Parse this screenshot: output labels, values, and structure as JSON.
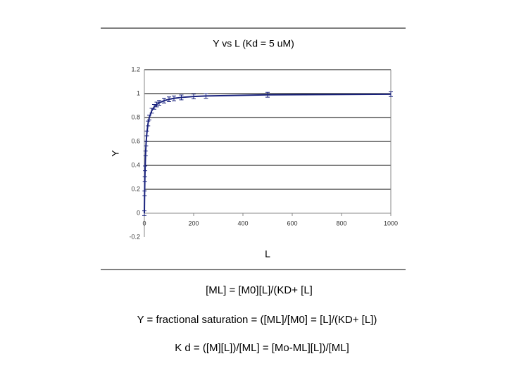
{
  "chart_data": {
    "type": "scatter",
    "title": "Y vs L (Kd = 5 uM)",
    "x_label": "L",
    "y_label": "Y",
    "series": [
      {
        "color": "#1a237e",
        "x": [
          0,
          1,
          2,
          3,
          5,
          7,
          10,
          15,
          20,
          30,
          40,
          50,
          60,
          80,
          100,
          120,
          150,
          200,
          250,
          500,
          1000
        ],
        "values": [
          0,
          0.167,
          0.286,
          0.375,
          0.5,
          0.583,
          0.667,
          0.75,
          0.8,
          0.857,
          0.889,
          0.909,
          0.923,
          0.941,
          0.952,
          0.96,
          0.968,
          0.976,
          0.98,
          0.99,
          0.995
        ],
        "errors": [
          0.02,
          0.02,
          0.02,
          0.02,
          0.02,
          0.02,
          0.02,
          0.02,
          0.02,
          0.02,
          0.02,
          0.02,
          0.02,
          0.02,
          0.02,
          0.02,
          0.02,
          0.02,
          0.02,
          0.02,
          0.02
        ]
      }
    ],
    "xlim": [
      0,
      1000
    ],
    "xticks": [
      0,
      200,
      400,
      600,
      800,
      1000
    ],
    "ylim": [
      -0.2,
      1.2
    ],
    "yticks": [
      -0.2,
      0,
      0.2,
      0.4,
      0.6,
      0.8,
      1,
      1.2
    ],
    "grid": true
  },
  "text_lines": [
    "[ML] = [M0][L]/(KD+ [L]",
    "Y = fractional saturation =  ([ML]/[M0] = [L]/(KD+ [L])",
    "K d = ([M][L])/[ML] = [Mo-ML][L])/[ML]"
  ]
}
